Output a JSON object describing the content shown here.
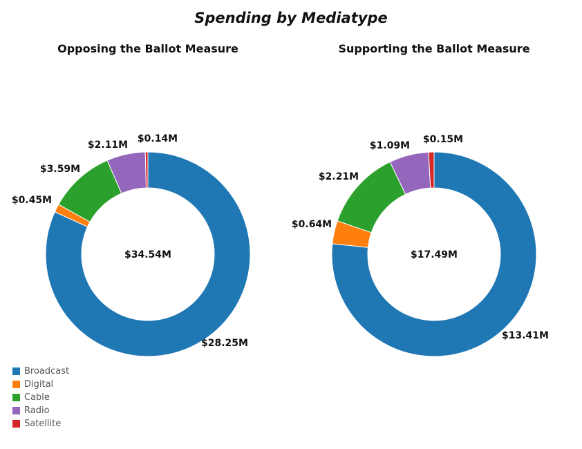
{
  "chart_data": [
    {
      "type": "pie",
      "title": "Opposing the Ballot Measure",
      "total_label": "$34.54M",
      "categories": [
        "Broadcast",
        "Digital",
        "Cable",
        "Radio",
        "Satellite"
      ],
      "values": [
        28.25,
        0.45,
        3.59,
        2.11,
        0.14
      ],
      "value_labels": [
        "$28.25M",
        "$0.45M",
        "$3.59M",
        "$2.11M",
        "$0.14M"
      ]
    },
    {
      "type": "pie",
      "title": "Supporting the Ballot Measure",
      "total_label": "$17.49M",
      "categories": [
        "Broadcast",
        "Digital",
        "Cable",
        "Radio",
        "Satellite"
      ],
      "values": [
        13.41,
        0.64,
        2.21,
        1.09,
        0.15
      ],
      "value_labels": [
        "$13.41M",
        "$0.64M",
        "$2.21M",
        "$1.09M",
        "$0.15M"
      ]
    }
  ],
  "figure": {
    "title": "Spending by Mediatype"
  },
  "legend": {
    "items": [
      {
        "label": "Broadcast",
        "color": "#1f77b4"
      },
      {
        "label": "Digital",
        "color": "#ff7f0e"
      },
      {
        "label": "Cable",
        "color": "#2ca02c"
      },
      {
        "label": "Radio",
        "color": "#9467bd"
      },
      {
        "label": "Satellite",
        "color": "#d62728"
      }
    ]
  }
}
